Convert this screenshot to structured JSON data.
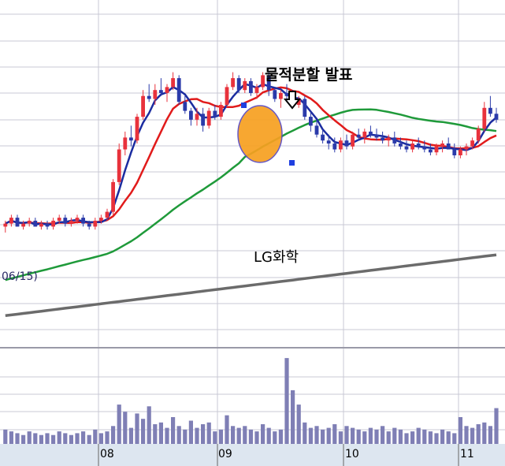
{
  "annotations": {
    "event_label": "물적분할 발표",
    "stock_name": "LG화학",
    "ma_date_label": "06/15)"
  },
  "colors": {
    "up_candle": "#e8323c",
    "down_candle": "#2a3aaa",
    "ma_short": "#1b2ca0",
    "ma_mid": "#e11b1b",
    "ma_long": "#1f9a3a",
    "ma_longest": "#6b6b6b",
    "volume": "#7f7fb5",
    "highlight": "#f7a020",
    "grid": "#c9c9d4",
    "axis_bar": "#dde6f0"
  },
  "chart_data": [
    {
      "type": "candlestick",
      "title": "",
      "x_ticks": [
        "08",
        "09",
        "10",
        "11"
      ],
      "annotations": [
        "물적분할 발표",
        "LG화학"
      ],
      "series": [
        {
          "name": "",
          "kind": "moving-average-short"
        },
        {
          "name": "",
          "kind": "moving-average-mid"
        },
        {
          "name": "",
          "kind": "moving-average-long"
        },
        {
          "name": "",
          "kind": "moving-average-longest"
        }
      ],
      "candles": [
        [
          40,
          42,
          38,
          41
        ],
        [
          41,
          44,
          40,
          43
        ],
        [
          43,
          44,
          40,
          40
        ],
        [
          40,
          42,
          39,
          41
        ],
        [
          41,
          43,
          40,
          42
        ],
        [
          42,
          43,
          40,
          40
        ],
        [
          40,
          42,
          39,
          41
        ],
        [
          41,
          42,
          39,
          40
        ],
        [
          40,
          43,
          39,
          42
        ],
        [
          42,
          44,
          41,
          43
        ],
        [
          43,
          44,
          40,
          41
        ],
        [
          41,
          43,
          40,
          42
        ],
        [
          42,
          44,
          41,
          43
        ],
        [
          43,
          44,
          40,
          41
        ],
        [
          41,
          42,
          39,
          40
        ],
        [
          40,
          43,
          39,
          42
        ],
        [
          42,
          44,
          41,
          43
        ],
        [
          43,
          46,
          42,
          45
        ],
        [
          45,
          56,
          44,
          55
        ],
        [
          55,
          68,
          54,
          66
        ],
        [
          66,
          72,
          64,
          70
        ],
        [
          70,
          74,
          67,
          69
        ],
        [
          69,
          78,
          68,
          77
        ],
        [
          77,
          86,
          76,
          84
        ],
        [
          84,
          88,
          82,
          83
        ],
        [
          83,
          88,
          81,
          86
        ],
        [
          86,
          90,
          84,
          85
        ],
        [
          85,
          88,
          82,
          87
        ],
        [
          87,
          92,
          86,
          90
        ],
        [
          90,
          91,
          81,
          82
        ],
        [
          82,
          84,
          78,
          79
        ],
        [
          79,
          80,
          74,
          76
        ],
        [
          76,
          80,
          74,
          78
        ],
        [
          78,
          80,
          72,
          74
        ],
        [
          74,
          80,
          73,
          79
        ],
        [
          79,
          81,
          76,
          77
        ],
        [
          77,
          82,
          76,
          81
        ],
        [
          81,
          88,
          80,
          87
        ],
        [
          87,
          92,
          86,
          90
        ],
        [
          90,
          91,
          85,
          86
        ],
        [
          86,
          90,
          85,
          89
        ],
        [
          89,
          90,
          84,
          85
        ],
        [
          85,
          88,
          83,
          87
        ],
        [
          87,
          92,
          86,
          91
        ],
        [
          91,
          92,
          84,
          86
        ],
        [
          86,
          87,
          82,
          83
        ],
        [
          83,
          86,
          80,
          85
        ],
        [
          85,
          88,
          82,
          84
        ],
        [
          84,
          86,
          80,
          81
        ],
        [
          81,
          84,
          80,
          83
        ],
        [
          83,
          84,
          76,
          77
        ],
        [
          77,
          79,
          72,
          74
        ],
        [
          74,
          76,
          70,
          71
        ],
        [
          71,
          73,
          68,
          69
        ],
        [
          69,
          71,
          66,
          68
        ],
        [
          68,
          70,
          65,
          66
        ],
        [
          66,
          70,
          65,
          69
        ],
        [
          69,
          71,
          66,
          67
        ],
        [
          67,
          72,
          66,
          71
        ],
        [
          71,
          73,
          69,
          70
        ],
        [
          70,
          73,
          68,
          72
        ],
        [
          72,
          74,
          70,
          71
        ],
        [
          71,
          73,
          69,
          70
        ],
        [
          70,
          72,
          68,
          69
        ],
        [
          69,
          71,
          67,
          70
        ],
        [
          70,
          72,
          67,
          68
        ],
        [
          68,
          70,
          66,
          67
        ],
        [
          67,
          69,
          65,
          66
        ],
        [
          66,
          69,
          65,
          68
        ],
        [
          68,
          70,
          66,
          67
        ],
        [
          67,
          69,
          65,
          66
        ],
        [
          66,
          68,
          64,
          65
        ],
        [
          65,
          68,
          64,
          67
        ],
        [
          67,
          69,
          65,
          68
        ],
        [
          68,
          70,
          66,
          66
        ],
        [
          66,
          68,
          63,
          64
        ],
        [
          64,
          67,
          63,
          66
        ],
        [
          66,
          68,
          64,
          67
        ],
        [
          67,
          70,
          66,
          69
        ],
        [
          69,
          74,
          68,
          73
        ],
        [
          73,
          82,
          72,
          80
        ],
        [
          80,
          84,
          77,
          78
        ],
        [
          78,
          80,
          75,
          76
        ]
      ],
      "volume": [
        8,
        7,
        6,
        5,
        7,
        6,
        5,
        6,
        5,
        7,
        6,
        5,
        6,
        7,
        5,
        8,
        6,
        7,
        10,
        22,
        18,
        9,
        17,
        14,
        21,
        11,
        12,
        9,
        15,
        10,
        8,
        13,
        9,
        11,
        12,
        7,
        8,
        16,
        10,
        9,
        10,
        8,
        7,
        11,
        9,
        7,
        8,
        48,
        30,
        22,
        12,
        9,
        10,
        8,
        9,
        11,
        7,
        10,
        9,
        8,
        7,
        9,
        8,
        10,
        7,
        9,
        8,
        6,
        7,
        9,
        8,
        7,
        6,
        8,
        7,
        6,
        15,
        10,
        9,
        11,
        12,
        10,
        20
      ],
      "highlight_event": {
        "label": "물적분할 발표",
        "at_candle": 46
      }
    }
  ]
}
